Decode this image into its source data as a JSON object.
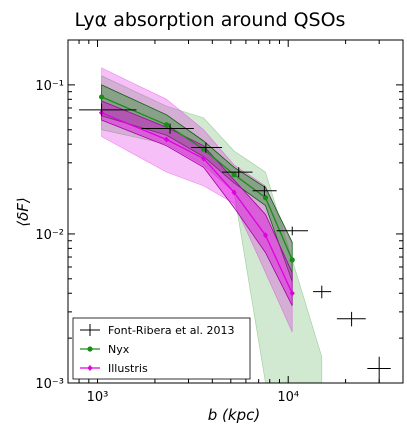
{
  "chart_data": {
    "type": "line",
    "title": "Lyα absorption around QSOs",
    "xlabel": "b (kpc)",
    "ylabel": "⟨δF⟩",
    "x_scale": "log",
    "y_scale": "log",
    "xlim": [
      700,
      40000
    ],
    "ylim": [
      0.001,
      0.2
    ],
    "x_ticks": [
      {
        "value": 1000,
        "label": "10³"
      },
      {
        "value": 10000,
        "label": "10⁴"
      }
    ],
    "y_ticks": [
      {
        "value": 0.1,
        "label": "10⁻¹"
      },
      {
        "value": 0.01,
        "label": "10⁻²"
      },
      {
        "value": 0.001,
        "label": "10⁻³"
      }
    ],
    "grid": false,
    "legend_position": "lower-left",
    "series": [
      {
        "name": "Font-Ribera et al. 2013",
        "kind": "errorbar",
        "color": "#000000",
        "points": [
          {
            "x": 1050,
            "y": 0.068,
            "x_lo": 800,
            "x_hi": 1600,
            "y_lo": 0.062,
            "y_hi": 0.075
          },
          {
            "x": 2400,
            "y": 0.051,
            "x_lo": 1700,
            "x_hi": 3200,
            "y_lo": 0.047,
            "y_hi": 0.055
          },
          {
            "x": 3700,
            "y": 0.038,
            "x_lo": 3100,
            "x_hi": 4500,
            "y_lo": 0.035,
            "y_hi": 0.041
          },
          {
            "x": 5500,
            "y": 0.026,
            "x_lo": 4500,
            "x_hi": 6500,
            "y_lo": 0.024,
            "y_hi": 0.028
          },
          {
            "x": 7500,
            "y": 0.0195,
            "x_lo": 6500,
            "x_hi": 8700,
            "y_lo": 0.018,
            "y_hi": 0.021
          },
          {
            "x": 10500,
            "y": 0.0105,
            "x_lo": 8700,
            "x_hi": 12700,
            "y_lo": 0.0098,
            "y_hi": 0.0112
          },
          {
            "x": 15000,
            "y": 0.0041,
            "x_lo": 13500,
            "x_hi": 16800,
            "y_lo": 0.0037,
            "y_hi": 0.0045
          },
          {
            "x": 21500,
            "y": 0.0027,
            "x_lo": 18000,
            "x_hi": 25500,
            "y_lo": 0.0024,
            "y_hi": 0.003
          },
          {
            "x": 30000,
            "y": 0.00125,
            "x_lo": 26000,
            "x_hi": 34500,
            "y_lo": 0.001,
            "y_hi": 0.0015
          }
        ]
      },
      {
        "name": "Nyx",
        "kind": "line",
        "color": "#1a8c1a",
        "marker": "circle",
        "x": [
          1050,
          2300,
          3600,
          5200,
          7600,
          10500
        ],
        "y": [
          0.083,
          0.054,
          0.037,
          0.025,
          0.0175,
          0.0067
        ],
        "band_inner_lo": [
          0.062,
          0.046,
          0.033,
          0.022,
          0.0155,
          0.0048
        ],
        "band_inner_hi": [
          0.1,
          0.063,
          0.042,
          0.028,
          0.0205,
          0.0088
        ],
        "band_outer_lo": [
          0.05,
          0.04,
          0.029,
          0.019,
          0.0006,
          0.0006
        ],
        "band_outer_hi": [
          0.115,
          0.072,
          0.06,
          0.036,
          0.026,
          0.01
        ],
        "band_outer_x": [
          1050,
          2300,
          3600,
          5200,
          7600,
          15000
        ],
        "band_outer_tail_hi": [
          0.115,
          0.072,
          0.06,
          0.036,
          0.026,
          0.0015
        ]
      },
      {
        "name": "Illustris",
        "kind": "line",
        "color": "#e000e0",
        "marker": "diamond",
        "x": [
          1050,
          2300,
          3600,
          5200,
          7600,
          10500
        ],
        "y": [
          0.065,
          0.043,
          0.032,
          0.019,
          0.0098,
          0.004
        ],
        "band_inner_lo": [
          0.058,
          0.039,
          0.028,
          0.015,
          0.0075,
          0.0033
        ],
        "band_inner_hi": [
          0.078,
          0.052,
          0.039,
          0.023,
          0.0135,
          0.0055
        ],
        "band_outer_lo": [
          0.045,
          0.026,
          0.021,
          0.016,
          0.0055,
          0.0022
        ],
        "band_outer_hi": [
          0.13,
          0.08,
          0.05,
          0.029,
          0.021,
          0.0085
        ]
      }
    ]
  }
}
